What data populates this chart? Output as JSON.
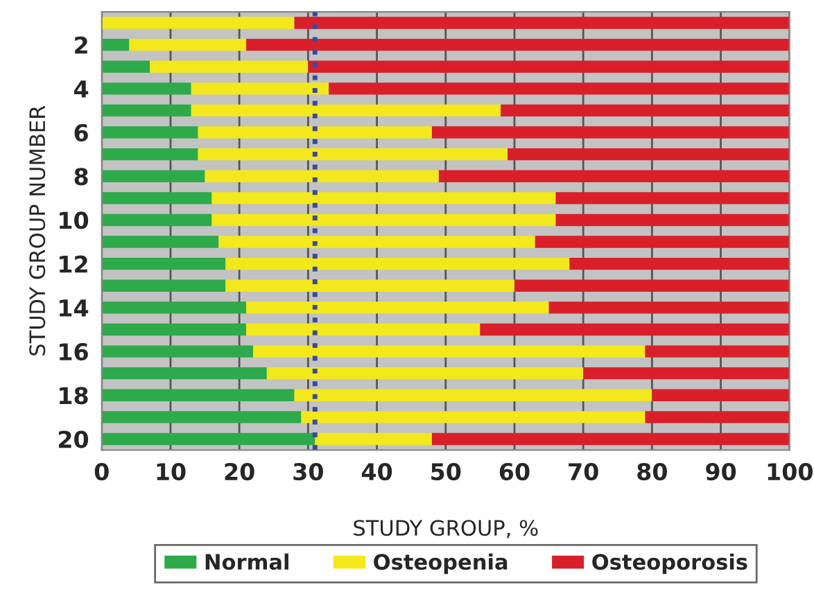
{
  "chart_data": {
    "type": "bar",
    "orientation": "horizontal",
    "stacked": true,
    "xlabel": "STUDY GROUP, %",
    "ylabel": "STUDY GROUP NUMBER",
    "categories": [
      null,
      "2",
      null,
      "4",
      null,
      "6",
      null,
      "8",
      null,
      "10",
      null,
      "12",
      null,
      "14",
      null,
      "16",
      null,
      "18",
      null,
      "20"
    ],
    "series": [
      {
        "name": "Normal",
        "color": "#2eaa4a",
        "values": [
          0,
          4,
          7,
          13,
          13,
          14,
          14,
          15,
          16,
          16,
          17,
          18,
          18,
          21,
          21,
          22,
          24,
          28,
          29,
          31
        ]
      },
      {
        "name": "Osteopenia",
        "color": "#f2e81c",
        "values": [
          28,
          17,
          23,
          20,
          45,
          34,
          45,
          34,
          50,
          50,
          46,
          50,
          42,
          44,
          34,
          57,
          46,
          52,
          50,
          17
        ]
      },
      {
        "name": "Osteoporosis",
        "color": "#d9202a",
        "values": [
          72,
          79,
          70,
          67,
          42,
          52,
          41,
          51,
          34,
          34,
          37,
          32,
          40,
          35,
          45,
          21,
          30,
          20,
          21,
          52
        ]
      }
    ],
    "xlim": [
      0,
      100
    ],
    "xticks": [
      0,
      10,
      20,
      30,
      40,
      50,
      60,
      70,
      80,
      90,
      100
    ],
    "ref_lines": [
      {
        "axis": "x",
        "value": 31,
        "color": "#3a4a9a",
        "line_style": "dotted"
      }
    ],
    "grid": "x",
    "legend": "bottom"
  }
}
